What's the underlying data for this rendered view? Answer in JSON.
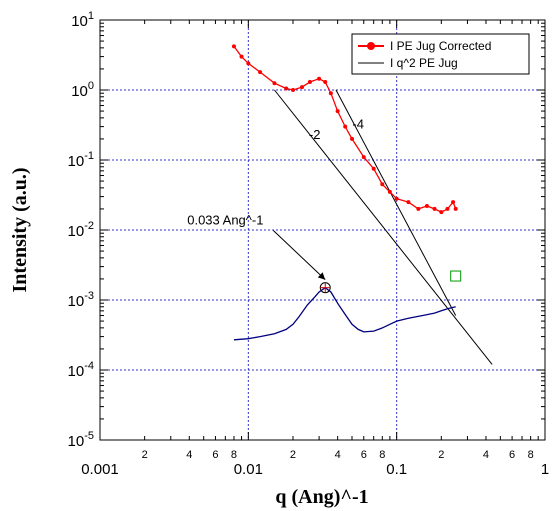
{
  "chart_data": {
    "type": "line",
    "xscale": "log",
    "yscale": "log",
    "xlim": [
      0.001,
      1
    ],
    "ylim": [
      1e-05,
      10
    ],
    "grid": "dotted blue at decades (x = 0.01, 0.1; y = 1e-4 ... 1)",
    "legend_position": "top-right",
    "xlabel": "q (Ang)^-1",
    "ylabel": "Intensity (a.u.)",
    "x_major_labels": [
      "0.001",
      "0.01",
      "0.1",
      "1"
    ],
    "x_minor_labels": [
      "2",
      "4",
      "6",
      "8"
    ],
    "y_major_labels": [
      {
        "value": 10,
        "base": "10",
        "exp": "1"
      },
      {
        "value": 1,
        "base": "10",
        "exp": "0"
      },
      {
        "value": 0.1,
        "base": "10",
        "exp": "-1"
      },
      {
        "value": 0.01,
        "base": "10",
        "exp": "-2"
      },
      {
        "value": 0.001,
        "base": "10",
        "exp": "-3"
      },
      {
        "value": 0.0001,
        "base": "10",
        "exp": "-4"
      },
      {
        "value": 1e-05,
        "base": "10",
        "exp": "-5"
      }
    ],
    "series": [
      {
        "name": "I PE Jug Corrected",
        "color": "#ff0000",
        "marker": "filled-circle",
        "x": [
          0.008,
          0.009,
          0.01,
          0.012,
          0.015,
          0.018,
          0.02,
          0.023,
          0.026,
          0.03,
          0.033,
          0.036,
          0.04,
          0.045,
          0.05,
          0.06,
          0.07,
          0.08,
          0.09,
          0.1,
          0.12,
          0.14,
          0.16,
          0.18,
          0.2,
          0.22,
          0.24,
          0.25
        ],
        "y": [
          4.2,
          3.0,
          2.4,
          1.8,
          1.25,
          1.05,
          1.0,
          1.1,
          1.3,
          1.45,
          1.3,
          0.9,
          0.5,
          0.3,
          0.2,
          0.11,
          0.075,
          0.045,
          0.035,
          0.028,
          0.025,
          0.02,
          0.022,
          0.02,
          0.018,
          0.02,
          0.025,
          0.02
        ]
      },
      {
        "name": "I q^2 PE Jug",
        "color": "#000080",
        "marker": "none",
        "x": [
          0.008,
          0.01,
          0.012,
          0.015,
          0.018,
          0.02,
          0.022,
          0.025,
          0.028,
          0.03,
          0.033,
          0.036,
          0.04,
          0.045,
          0.05,
          0.055,
          0.06,
          0.07,
          0.08,
          0.09,
          0.1,
          0.12,
          0.15,
          0.18,
          0.2,
          0.22,
          0.25
        ],
        "y": [
          0.00027,
          0.00028,
          0.0003,
          0.00033,
          0.00038,
          0.00045,
          0.00058,
          0.00085,
          0.0011,
          0.0013,
          0.0015,
          0.0013,
          0.0009,
          0.00062,
          0.00045,
          0.00038,
          0.00035,
          0.00036,
          0.0004,
          0.00045,
          0.0005,
          0.00055,
          0.0006,
          0.00065,
          0.0007,
          0.00075,
          0.0008
        ]
      }
    ],
    "reference_lines": [
      {
        "label": "-2",
        "x": [
          0.015,
          0.44
        ],
        "y": [
          1.0,
          0.00012
        ],
        "label_at": [
          0.028,
          0.2
        ]
      },
      {
        "label": "-4",
        "x": [
          0.039,
          0.25
        ],
        "y": [
          1.0,
          0.0006
        ],
        "label_at": [
          0.055,
          0.28
        ]
      }
    ],
    "annotations": [
      {
        "text": "0.033 Ang^-1",
        "point": [
          0.033,
          0.0015
        ],
        "text_at": [
          0.007,
          0.012
        ]
      }
    ],
    "highlight_points": [
      {
        "shape": "circle-cross",
        "x": 0.033,
        "y": 0.0015
      },
      {
        "shape": "square",
        "x": 0.25,
        "y": 0.0022
      }
    ]
  }
}
